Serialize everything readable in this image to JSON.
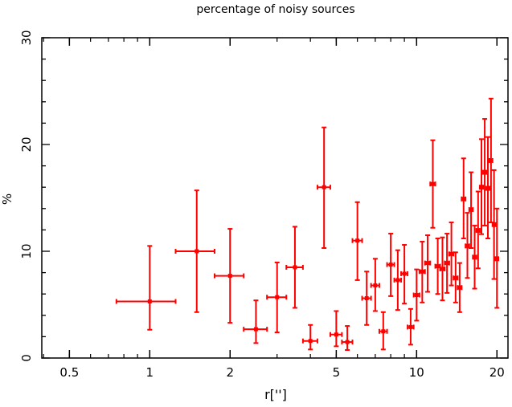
{
  "chart_data": {
    "type": "scatter",
    "title": "percentage of noisy sources",
    "xlabel": "r['']",
    "ylabel": "%",
    "xscale": "log",
    "xlim": [
      0.394,
      22.0
    ],
    "ylim": [
      0,
      30
    ],
    "xticks": [
      0.5,
      1,
      2,
      5,
      10,
      20
    ],
    "xtick_labels": [
      "0.5",
      "1",
      "2",
      "5",
      "10",
      "20"
    ],
    "yticks": [
      0,
      10,
      20,
      30
    ],
    "ytick_labels": [
      "0",
      "10",
      "20",
      "30"
    ],
    "grid": false,
    "series_color": "#ff0000",
    "series": [
      {
        "name": "noisy sources",
        "x": [
          1,
          1.5,
          2,
          2.5,
          3,
          3.5,
          4,
          4.5,
          5,
          5.5,
          6,
          6.5,
          7,
          7.5,
          8,
          8.5,
          9,
          9.5,
          10,
          10.5,
          11,
          11.5,
          12,
          12.5,
          13,
          13.5,
          14,
          14.5,
          15,
          15.5,
          16,
          16.5,
          17,
          17.5,
          18,
          18.5,
          19,
          19.5,
          20
        ],
        "x_err": 0.25,
        "y": [
          5.3,
          10.0,
          7.7,
          2.7,
          5.7,
          8.5,
          1.6,
          16.0,
          2.2,
          1.5,
          11.0,
          5.6,
          6.8,
          2.5,
          8.75,
          7.3,
          7.9,
          2.9,
          5.9,
          8.1,
          8.9,
          16.3,
          8.6,
          8.35,
          8.9,
          9.75,
          7.5,
          6.6,
          14.9,
          10.5,
          13.9,
          9.45,
          11.95,
          16.0,
          17.4,
          15.9,
          18.5,
          12.5,
          9.3
        ],
        "y_low": [
          2.65,
          4.3,
          3.3,
          1.4,
          2.4,
          4.7,
          0.8,
          10.3,
          1.1,
          0.75,
          7.3,
          3.1,
          4.4,
          0.8,
          5.8,
          4.5,
          5.1,
          1.25,
          3.5,
          5.2,
          6.2,
          12.2,
          6.0,
          5.4,
          6.1,
          6.8,
          5.2,
          4.3,
          11.2,
          7.5,
          10.3,
          6.5,
          8.4,
          11.6,
          12.4,
          11.2,
          12.7,
          7.4,
          4.7
        ],
        "y_high": [
          10.5,
          15.7,
          12.1,
          5.4,
          8.95,
          12.3,
          3.1,
          21.6,
          4.4,
          3.0,
          14.6,
          8.1,
          9.3,
          4.3,
          11.65,
          10.1,
          10.6,
          4.6,
          8.3,
          10.9,
          11.5,
          20.4,
          11.2,
          11.3,
          11.65,
          12.7,
          9.9,
          8.9,
          18.7,
          13.6,
          17.4,
          12.4,
          15.6,
          20.5,
          22.4,
          20.7,
          24.3,
          17.6,
          14.0
        ]
      }
    ]
  }
}
